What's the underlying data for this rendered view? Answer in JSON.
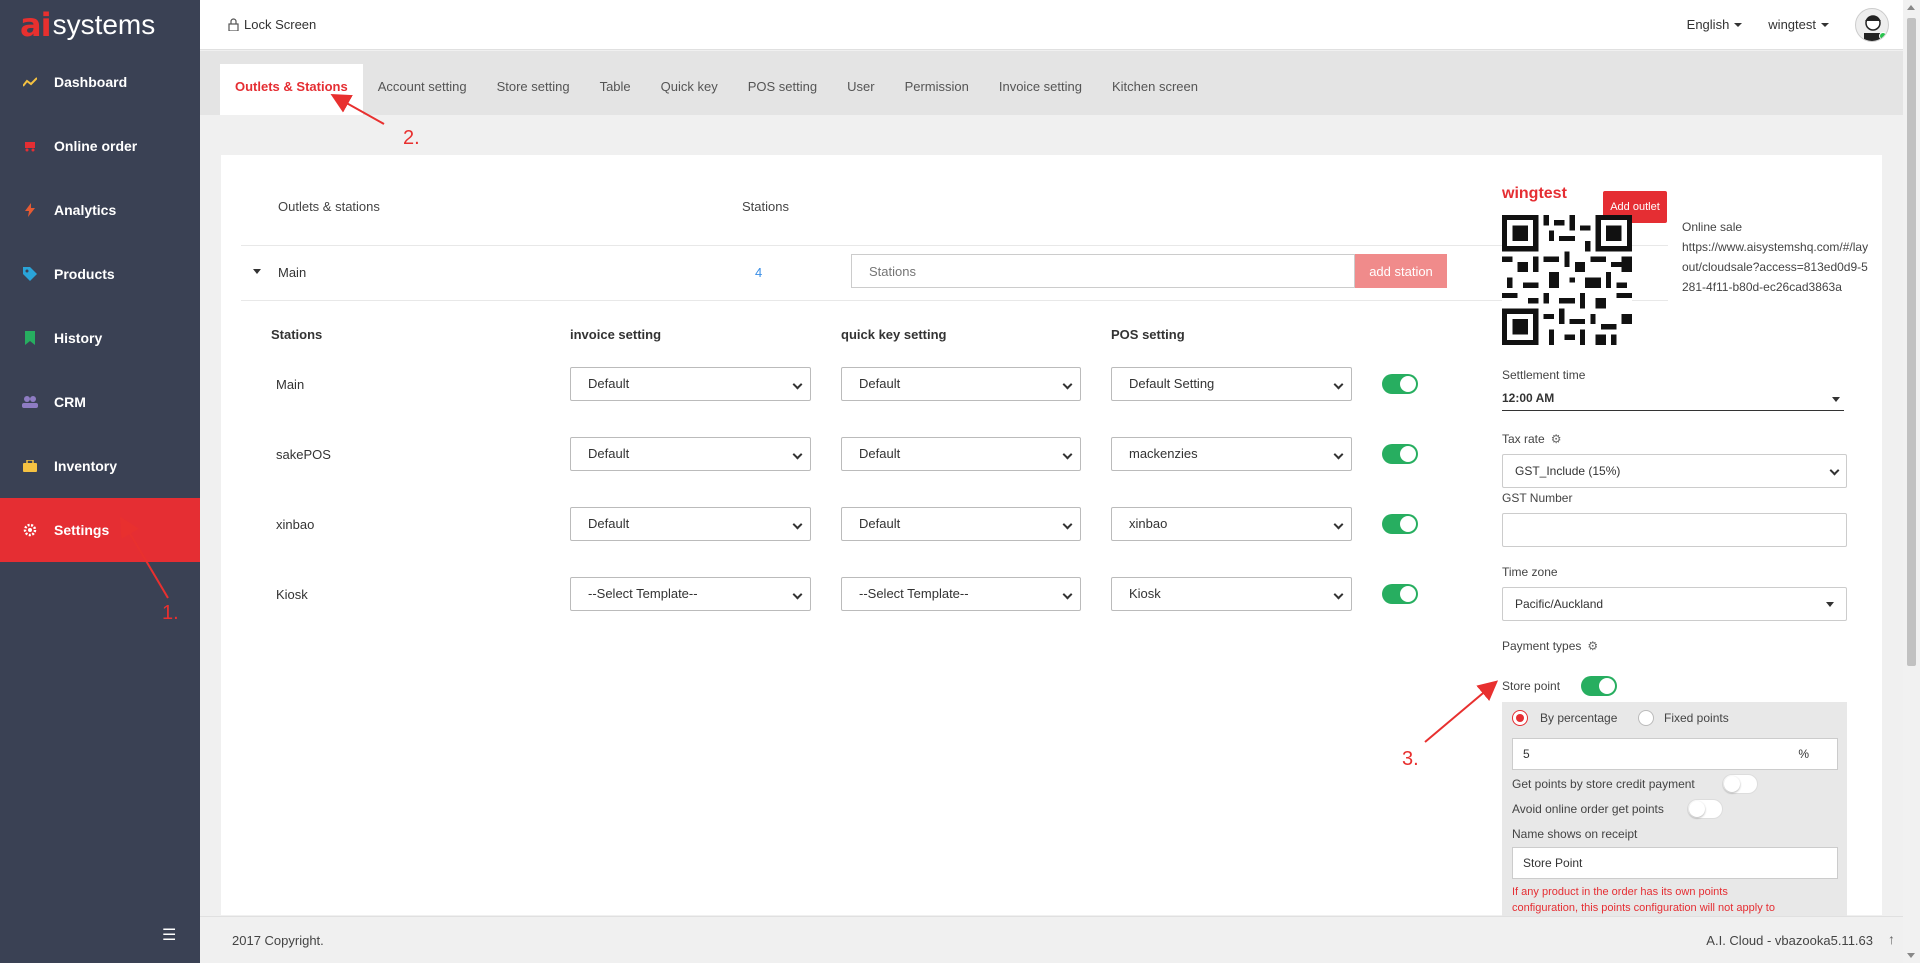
{
  "brand": {
    "mark": "ai",
    "name": "systems"
  },
  "sidebar": {
    "items": [
      {
        "label": "Dashboard",
        "icon": "trend-line-icon",
        "color": "#f5c242"
      },
      {
        "label": "Online order",
        "icon": "cart-icon",
        "color": "#e52e33"
      },
      {
        "label": "Analytics",
        "icon": "lightning-icon",
        "color": "#e55a33"
      },
      {
        "label": "Products",
        "icon": "tag-icon",
        "color": "#2aa4d8"
      },
      {
        "label": "History",
        "icon": "bookmark-icon",
        "color": "#27ae60"
      },
      {
        "label": "CRM",
        "icon": "users-icon",
        "color": "#8e7cc3"
      },
      {
        "label": "Inventory",
        "icon": "briefcase-icon",
        "color": "#f5c242"
      },
      {
        "label": "Settings",
        "icon": "gear-icon",
        "color": "#ffffff"
      }
    ],
    "active": "Settings"
  },
  "header": {
    "lock_label": "Lock Screen",
    "language": "English",
    "username": "wingtest"
  },
  "tabs": [
    "Outlets & Stations",
    "Account setting",
    "Store setting",
    "Table",
    "Quick key",
    "POS setting",
    "User",
    "Permission",
    "Invoice setting",
    "Kitchen screen"
  ],
  "outlets": {
    "col_outlets": "Outlets & stations",
    "col_stations": "Stations",
    "add_outlet": "Add outlet",
    "outlet_name": "Main",
    "station_count": "4",
    "station_placeholder": "Stations",
    "add_station": "add station",
    "table_headers": [
      "Stations",
      "invoice setting",
      "quick key setting",
      "POS setting"
    ],
    "rows": [
      {
        "name": "Main",
        "invoice": "Default",
        "quickkey": "Default",
        "pos": "Default Setting",
        "enabled": true
      },
      {
        "name": "sakePOS",
        "invoice": "Default",
        "quickkey": "Default",
        "pos": "mackenzies",
        "enabled": true
      },
      {
        "name": "xinbao",
        "invoice": "Default",
        "quickkey": "Default",
        "pos": "xinbao",
        "enabled": true
      },
      {
        "name": "Kiosk",
        "invoice": "--Select Template--",
        "quickkey": "--Select Template--",
        "pos": "Kiosk",
        "enabled": true
      }
    ]
  },
  "store": {
    "title": "wingtest",
    "online_sale_label": "Online sale",
    "online_sale_url": "https://www.aisystemshq.com/#/layout/cloudsale?access=813ed0d9-5281-4f11-b80d-ec26cad3863a",
    "settlement_label": "Settlement time",
    "settlement_value": "12:00 AM",
    "tax_label": "Tax rate",
    "tax_value": "GST_Include (15%)",
    "gst_label": "GST Number",
    "gst_value": "",
    "tz_label": "Time zone",
    "tz_value": "Pacific/Auckland",
    "payment_label": "Payment types",
    "store_point_label": "Store point",
    "by_percentage": "By percentage",
    "fixed_points": "Fixed points",
    "percent_value": "5",
    "percent_unit": "%",
    "credit_label": "Get points by store credit payment",
    "avoid_label": "Avoid online order get points",
    "receipt_label": "Name shows on receipt",
    "receipt_value": "Store Point",
    "warning": "If any product in the order has its own points",
    "warning2": "configuration, this points configuration will not apply to"
  },
  "annotations": [
    "1.",
    "2.",
    "3."
  ],
  "footer": {
    "copyright": "2017 Copyright.",
    "version": "A.I. Cloud - vbazooka5.11.63"
  },
  "colors": {
    "accent": "#e52e33",
    "sidebar": "#3a4154",
    "toggle_on": "#27ae60"
  }
}
